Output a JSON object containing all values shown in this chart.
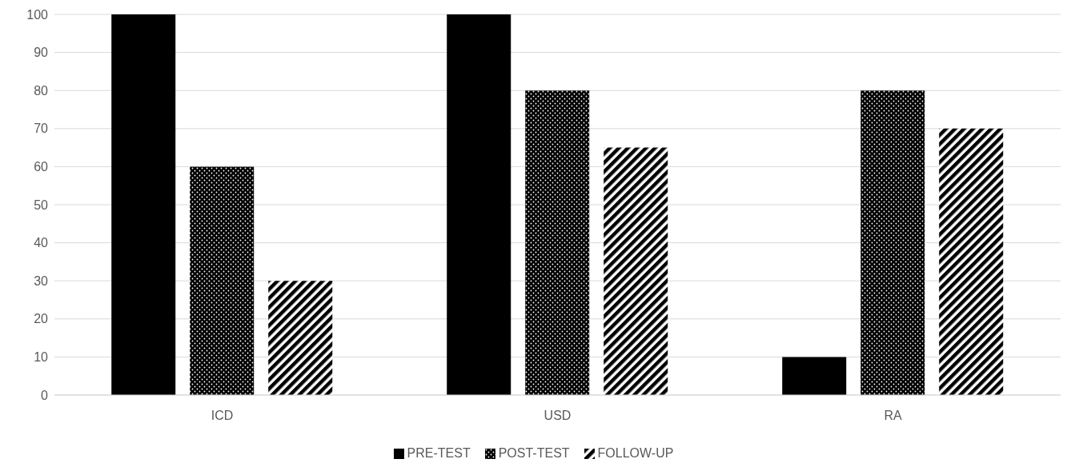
{
  "chart_data": {
    "type": "bar",
    "categories": [
      "ICD",
      "USD",
      "RA"
    ],
    "series": [
      {
        "name": "PRE-TEST",
        "color": "#000000",
        "values": [
          100,
          100,
          10
        ]
      },
      {
        "name": "POST-TEST",
        "color": "#000000",
        "values": [
          60,
          80,
          80
        ]
      },
      {
        "name": "FOLLOW-UP",
        "color": "#000000",
        "values": [
          30,
          65,
          70
        ]
      }
    ],
    "ylim": [
      0,
      100
    ],
    "yticks": [
      0,
      10,
      20,
      30,
      40,
      50,
      60,
      70,
      80,
      90,
      100
    ],
    "grid": "y",
    "legend": "bottom"
  }
}
